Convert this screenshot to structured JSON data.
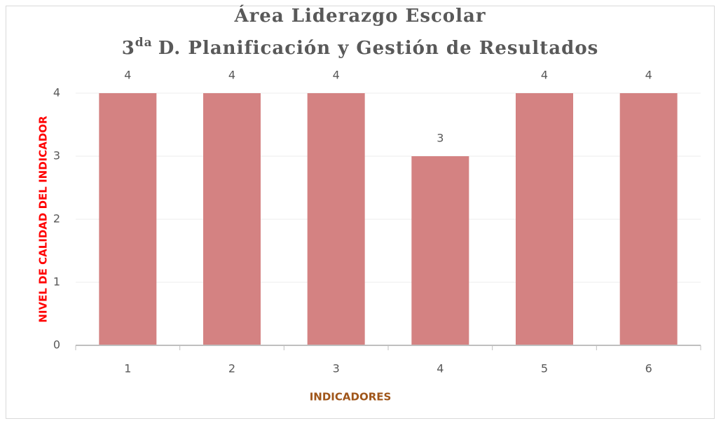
{
  "chart_data": {
    "type": "bar",
    "title": {
      "line1": "Área Liderazgo Escolar",
      "line2_number": "3",
      "line2_superscript": "da",
      "line2_text": "D. Planificación y Gestión de Resultados"
    },
    "xlabel": "INDICADORES",
    "ylabel": "NIVEL DE CALIDAD DEL INDICADOR",
    "categories": [
      "1",
      "2",
      "3",
      "4",
      "5",
      "6"
    ],
    "values": [
      4,
      4,
      4,
      3,
      4,
      4
    ],
    "color": "#d48282",
    "ylim": [
      0,
      4
    ],
    "yticks": [
      0,
      1,
      2,
      3,
      4
    ],
    "grid": true
  }
}
